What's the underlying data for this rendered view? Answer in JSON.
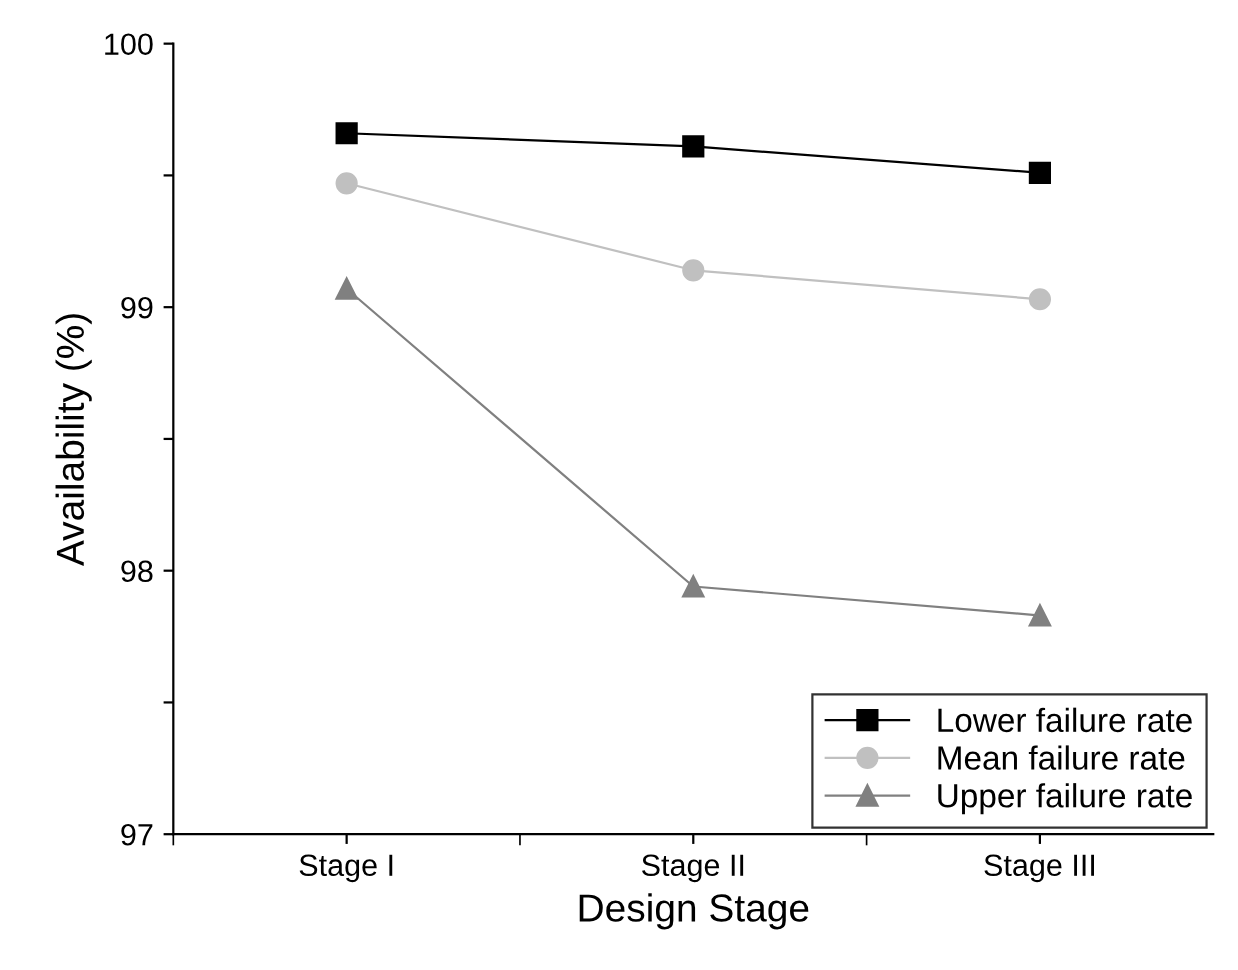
{
  "chart_data": {
    "type": "line",
    "xlabel": "Design Stage",
    "ylabel": "Availability (%)",
    "categories": [
      "Stage I",
      "Stage II",
      "Stage III"
    ],
    "series": [
      {
        "name": "Lower failure rate",
        "color": "#000000",
        "values": [
          99.66,
          99.61,
          99.51
        ],
        "marker": "square"
      },
      {
        "name": "Mean failure rate",
        "color": "#c0c0c0",
        "values": [
          99.47,
          99.14,
          99.03
        ],
        "marker": "circle"
      },
      {
        "name": "Upper failure rate",
        "color": "#808080",
        "values": [
          99.07,
          97.94,
          97.83
        ],
        "marker": "triangle"
      }
    ],
    "ylim": [
      97,
      100
    ],
    "yticks": [
      97,
      {
        "value": 97.5,
        "label": null
      },
      98,
      {
        "value": 98.5,
        "label": null
      },
      99,
      {
        "value": 99.5,
        "label": null
      },
      100
    ],
    "legend": "bottom right",
    "grid": false,
    "line_style": "solid"
  }
}
